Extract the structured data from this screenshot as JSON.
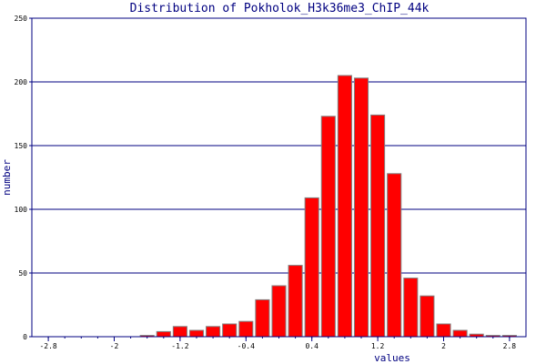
{
  "chart_data": {
    "type": "bar",
    "title": "Distribution of  Pokholok_H3k36me3_ChIP_44k",
    "xlabel": "values",
    "ylabel": "number",
    "xlim": [
      -3.0,
      3.0
    ],
    "ylim": [
      0,
      250
    ],
    "grid": true,
    "bar_color": "#ff0000",
    "grid_color": "#000080",
    "x_ticks": [
      -2.8,
      -2,
      -1.2,
      -0.4,
      0.4,
      1.2,
      2,
      2.8
    ],
    "x_tick_labels": [
      "-2.8",
      "-2",
      "-1.2",
      "-0.4",
      "0.4",
      "1.2",
      "2",
      "2.8"
    ],
    "y_ticks": [
      0,
      50,
      100,
      150,
      200,
      250
    ],
    "y_tick_labels": [
      "0",
      "50",
      "100",
      "150",
      "200",
      "250"
    ],
    "bin_width": 0.2,
    "x": [
      -1.6,
      -1.4,
      -1.2,
      -1.0,
      -0.8,
      -0.6,
      -0.4,
      -0.2,
      0.0,
      0.2,
      0.4,
      0.6,
      0.8,
      1.0,
      1.2,
      1.4,
      1.6,
      1.8,
      2.0,
      2.2,
      2.4,
      2.6,
      2.8
    ],
    "values": [
      1,
      4,
      8,
      5,
      8,
      10,
      12,
      29,
      40,
      56,
      109,
      173,
      205,
      203,
      174,
      128,
      46,
      32,
      10,
      5,
      2,
      1,
      1
    ]
  }
}
